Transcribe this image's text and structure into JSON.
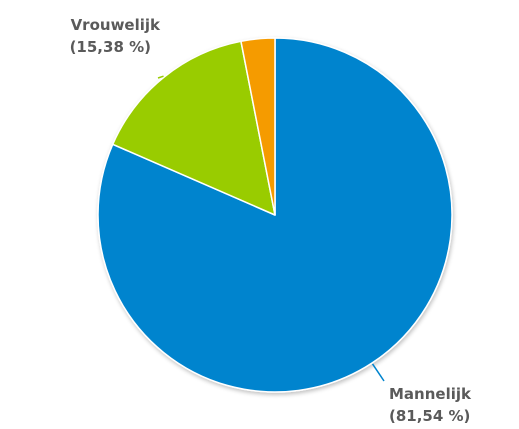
{
  "chart_data": {
    "type": "pie",
    "title": "",
    "slices": [
      {
        "name": "Mannelijk",
        "value": 81.54,
        "value_label": "(81,54 %)",
        "color": "#0084CE"
      },
      {
        "name": "Vrouwelijk",
        "value": 15.38,
        "value_label": "(15,38 %)",
        "color": "#99CC00"
      },
      {
        "name": "",
        "value": 3.08,
        "value_label": "",
        "color": "#F59B00"
      }
    ],
    "start_angle": "12 o'clock",
    "direction": "clockwise",
    "legend": "none"
  }
}
